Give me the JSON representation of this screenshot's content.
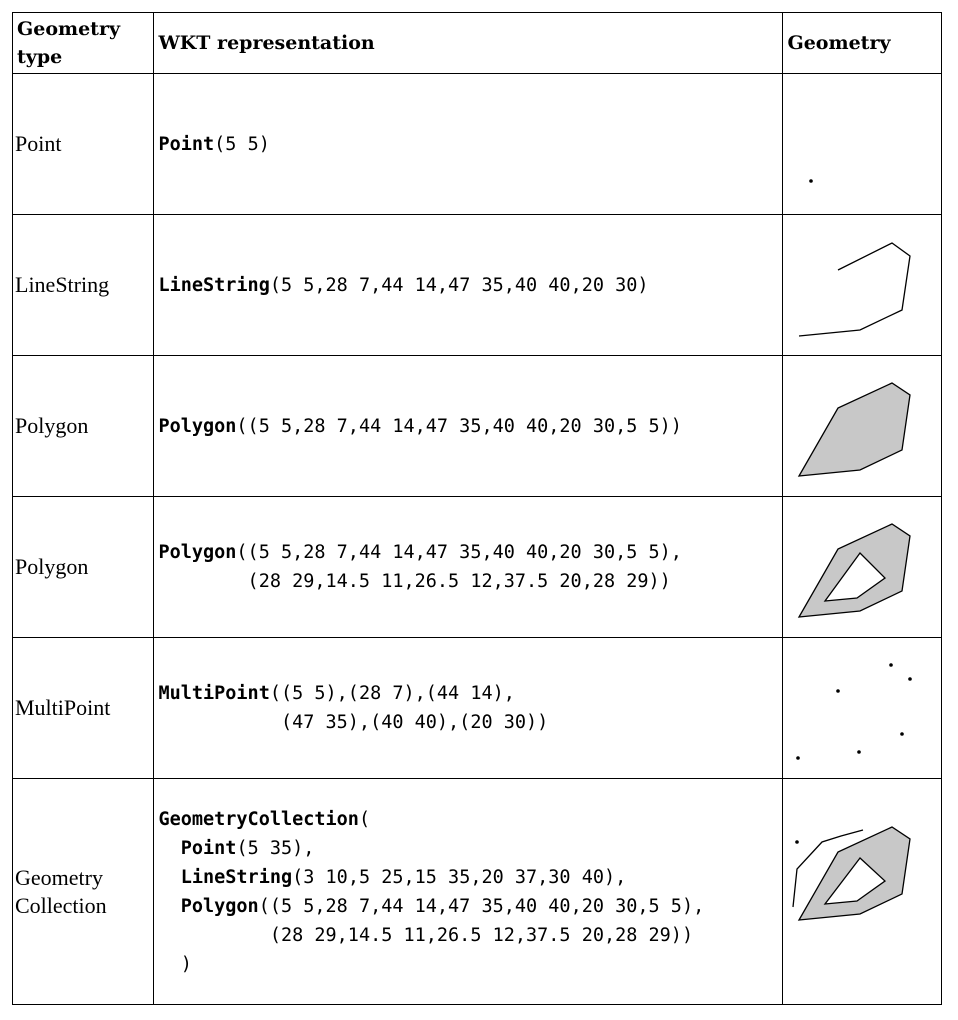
{
  "table": {
    "headers": {
      "type": "Geometry type",
      "wkt": "WKT representation",
      "geometry": "Geometry"
    },
    "rows": [
      {
        "type": "Point",
        "kw": "Point",
        "wkt_rest": "(5 5)"
      },
      {
        "type": "LineString",
        "kw": "LineString",
        "wkt_rest": "(5 5,28 7,44 14,47 35,40 40,20 30)"
      },
      {
        "type": "Polygon",
        "kw": "Polygon",
        "wkt_rest": "((5 5,28 7,44 14,47 35,40 40,20 30,5 5))"
      },
      {
        "type": "Polygon",
        "kw": "Polygon",
        "wkt_rest": "((5 5,28 7,44 14,47 35,40 40,20 30,5 5),\n        (28 29,14.5 11,26.5 12,37.5 20,28 29))"
      },
      {
        "type": "MultiPoint",
        "kw": "MultiPoint",
        "wkt_rest": "((5 5),(28 7),(44 14),\n           (47 35),(40 40),(20 30))"
      },
      {
        "type_line1": "Geometry",
        "type_line2": "Collection",
        "kw": "GeometryCollection",
        "wkt_rest": "(",
        "line2_kw": "Point",
        "line2_rest": "(5 35),",
        "line3_kw": "LineString",
        "line3_rest": "(3 10,5 25,15 35,20 37,30 40),",
        "line4_kw": "Polygon",
        "line4_rest": "((5 5,28 7,44 14,47 35,40 40,20 30,5 5),",
        "line5": "        (28 29,14.5 11,26.5 12,37.5 20,28 29))",
        "line6": ")"
      }
    ]
  },
  "colors": {
    "fill": "#c8c8c8",
    "stroke": "#000000"
  }
}
